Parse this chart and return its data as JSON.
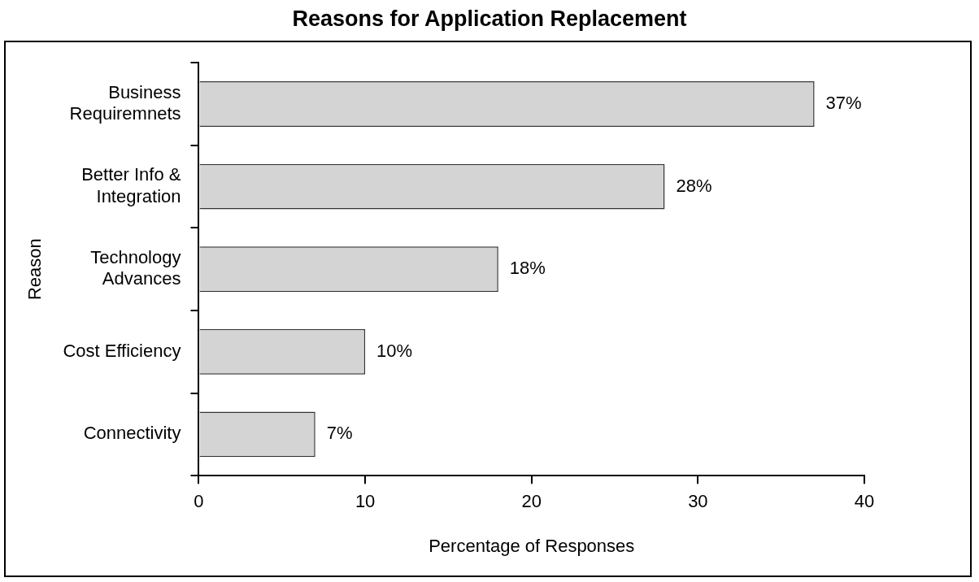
{
  "chart_data": {
    "type": "bar",
    "orientation": "horizontal",
    "title": "Reasons for Application Replacement",
    "xlabel": "Percentage of Responses",
    "ylabel": "Reason",
    "categories": [
      "Business Requiremnets",
      "Better Info & Integration",
      "Technology Advances",
      "Cost Efficiency",
      "Connectivity"
    ],
    "values": [
      37,
      28,
      18,
      10,
      7
    ],
    "color": "#d4d4d4",
    "value_labels": [
      "37%",
      "28%",
      "18%",
      "10%",
      "7%"
    ],
    "xlim": [
      0,
      40
    ],
    "xticks": [
      0,
      10,
      20,
      30,
      40
    ],
    "grid": false,
    "legend": false
  }
}
